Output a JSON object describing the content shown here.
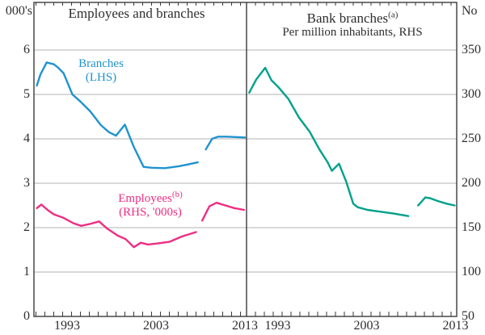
{
  "axes": {
    "left_unit": "000's",
    "right_unit": "No",
    "left_ticks": [
      0,
      1,
      2,
      3,
      4,
      5,
      6
    ],
    "right_ticks": [
      50,
      100,
      150,
      200,
      250,
      300,
      350
    ],
    "year_labels": [
      "1993",
      "2003",
      "2013"
    ]
  },
  "panel_left": {
    "title": "Employees and branches",
    "branches_label_line1": "Branches",
    "branches_label_line2": "(LHS)",
    "employees_label_line1": "Employees",
    "employees_label_sup": "(b)",
    "employees_label_line2": "(RHS, '000s)"
  },
  "panel_right": {
    "title": "Bank branches",
    "title_sup": "(a)",
    "subtitle": "Per million inhabitants, RHS"
  },
  "colors": {
    "branches": "#1f93cf",
    "employees": "#ee2d82",
    "per_million": "#00a08a",
    "gridline": "#b3b3b3",
    "frame": "#3a3a3a",
    "text": "#2e2e2e"
  },
  "chart_data": [
    {
      "type": "line",
      "panel": "left",
      "title": "Employees and branches",
      "xlabel": "",
      "x_range": [
        1989.8,
        2013.7
      ],
      "x_tick_interval_years": 1,
      "x_labeled_years": [
        1993,
        2003,
        2013
      ],
      "left_axis": {
        "label": "000's",
        "min": 0,
        "max": 7.05,
        "gridlines": [
          1,
          2,
          3,
          4,
          5,
          6
        ]
      },
      "grid": true,
      "series": [
        {
          "name": "Branches (LHS)",
          "axis": "left",
          "units": "thousands of branches",
          "color_key": "branches",
          "segments": [
            [
              [
                1990.1,
                5.2
              ],
              [
                1990.5,
                5.45
              ],
              [
                1991.2,
                5.72
              ],
              [
                1992.0,
                5.68
              ],
              [
                1992.4,
                5.62
              ],
              [
                1993.1,
                5.48
              ],
              [
                1994.1,
                5.0
              ],
              [
                1995.0,
                4.84
              ],
              [
                1996.1,
                4.62
              ],
              [
                1997.3,
                4.31
              ],
              [
                1998.2,
                4.15
              ],
              [
                1999.0,
                4.07
              ],
              [
                2000.0,
                4.32
              ],
              [
                2001.0,
                3.82
              ],
              [
                2002.1,
                3.37
              ],
              [
                2003.0,
                3.35
              ],
              [
                2004.5,
                3.34
              ],
              [
                2006.0,
                3.38
              ],
              [
                2007.0,
                3.42
              ],
              [
                2008.2,
                3.47
              ]
            ],
            [
              [
                2009.1,
                3.76
              ],
              [
                2009.8,
                4.0
              ],
              [
                2010.5,
                4.05
              ],
              [
                2011.5,
                4.05
              ],
              [
                2012.5,
                4.04
              ],
              [
                2013.5,
                4.03
              ]
            ]
          ]
        },
        {
          "name": "Employees (RHS, '000s)",
          "axis": "right",
          "units": "thousands of employees",
          "color_key": "employees",
          "segments": [
            [
              [
                1990.1,
                172
              ],
              [
                1990.6,
                176
              ],
              [
                1991.3,
                170
              ],
              [
                1992.0,
                165
              ],
              [
                1993.1,
                161
              ],
              [
                1994.2,
                155
              ],
              [
                1995.1,
                152
              ],
              [
                1996.0,
                154
              ],
              [
                1997.1,
                157
              ],
              [
                1998.0,
                149
              ],
              [
                1999.2,
                141
              ],
              [
                2000.1,
                137
              ],
              [
                2001.0,
                128
              ],
              [
                2001.8,
                133
              ],
              [
                2002.6,
                131
              ],
              [
                2003.5,
                132
              ],
              [
                2005.0,
                134
              ],
              [
                2006.4,
                140
              ],
              [
                2008.0,
                145
              ]
            ],
            [
              [
                2008.7,
                158
              ],
              [
                2009.5,
                174
              ],
              [
                2010.3,
                178
              ],
              [
                2011.3,
                175
              ],
              [
                2012.3,
                172
              ],
              [
                2013.4,
                170
              ]
            ]
          ]
        }
      ]
    },
    {
      "type": "line",
      "panel": "right",
      "title": "Bank branches (a) — Per million inhabitants, RHS",
      "xlabel": "",
      "x_range": [
        1990.0,
        2013.6
      ],
      "x_tick_interval_years": 1,
      "x_labeled_years": [
        1993,
        2003,
        2013
      ],
      "right_axis": {
        "label": "No",
        "min": 50,
        "max": 403,
        "gridlines": [
          50,
          100,
          150,
          200,
          250,
          300,
          350
        ]
      },
      "grid": true,
      "series": [
        {
          "name": "Bank branches per million inhabitants",
          "axis": "right",
          "units": "number per million inhabitants",
          "color_key": "per_million",
          "segments": [
            [
              [
                1990.3,
                302
              ],
              [
                1991.1,
                317
              ],
              [
                1992.1,
                330
              ],
              [
                1992.8,
                316
              ],
              [
                1993.6,
                308
              ],
              [
                1994.7,
                295
              ],
              [
                1995.9,
                274
              ],
              [
                1997.1,
                258
              ],
              [
                1998.2,
                238
              ],
              [
                1999.1,
                224
              ],
              [
                1999.6,
                214
              ],
              [
                2000.4,
                222
              ],
              [
                2001.2,
                202
              ],
              [
                2002.0,
                177
              ],
              [
                2002.5,
                173
              ],
              [
                2003.6,
                170
              ],
              [
                2005.0,
                168
              ],
              [
                2006.5,
                166
              ],
              [
                2008.2,
                163
              ]
            ],
            [
              [
                2009.3,
                175
              ],
              [
                2010.1,
                184
              ],
              [
                2010.7,
                183
              ],
              [
                2011.5,
                180
              ],
              [
                2012.5,
                177
              ],
              [
                2013.4,
                175
              ]
            ]
          ]
        }
      ]
    }
  ]
}
